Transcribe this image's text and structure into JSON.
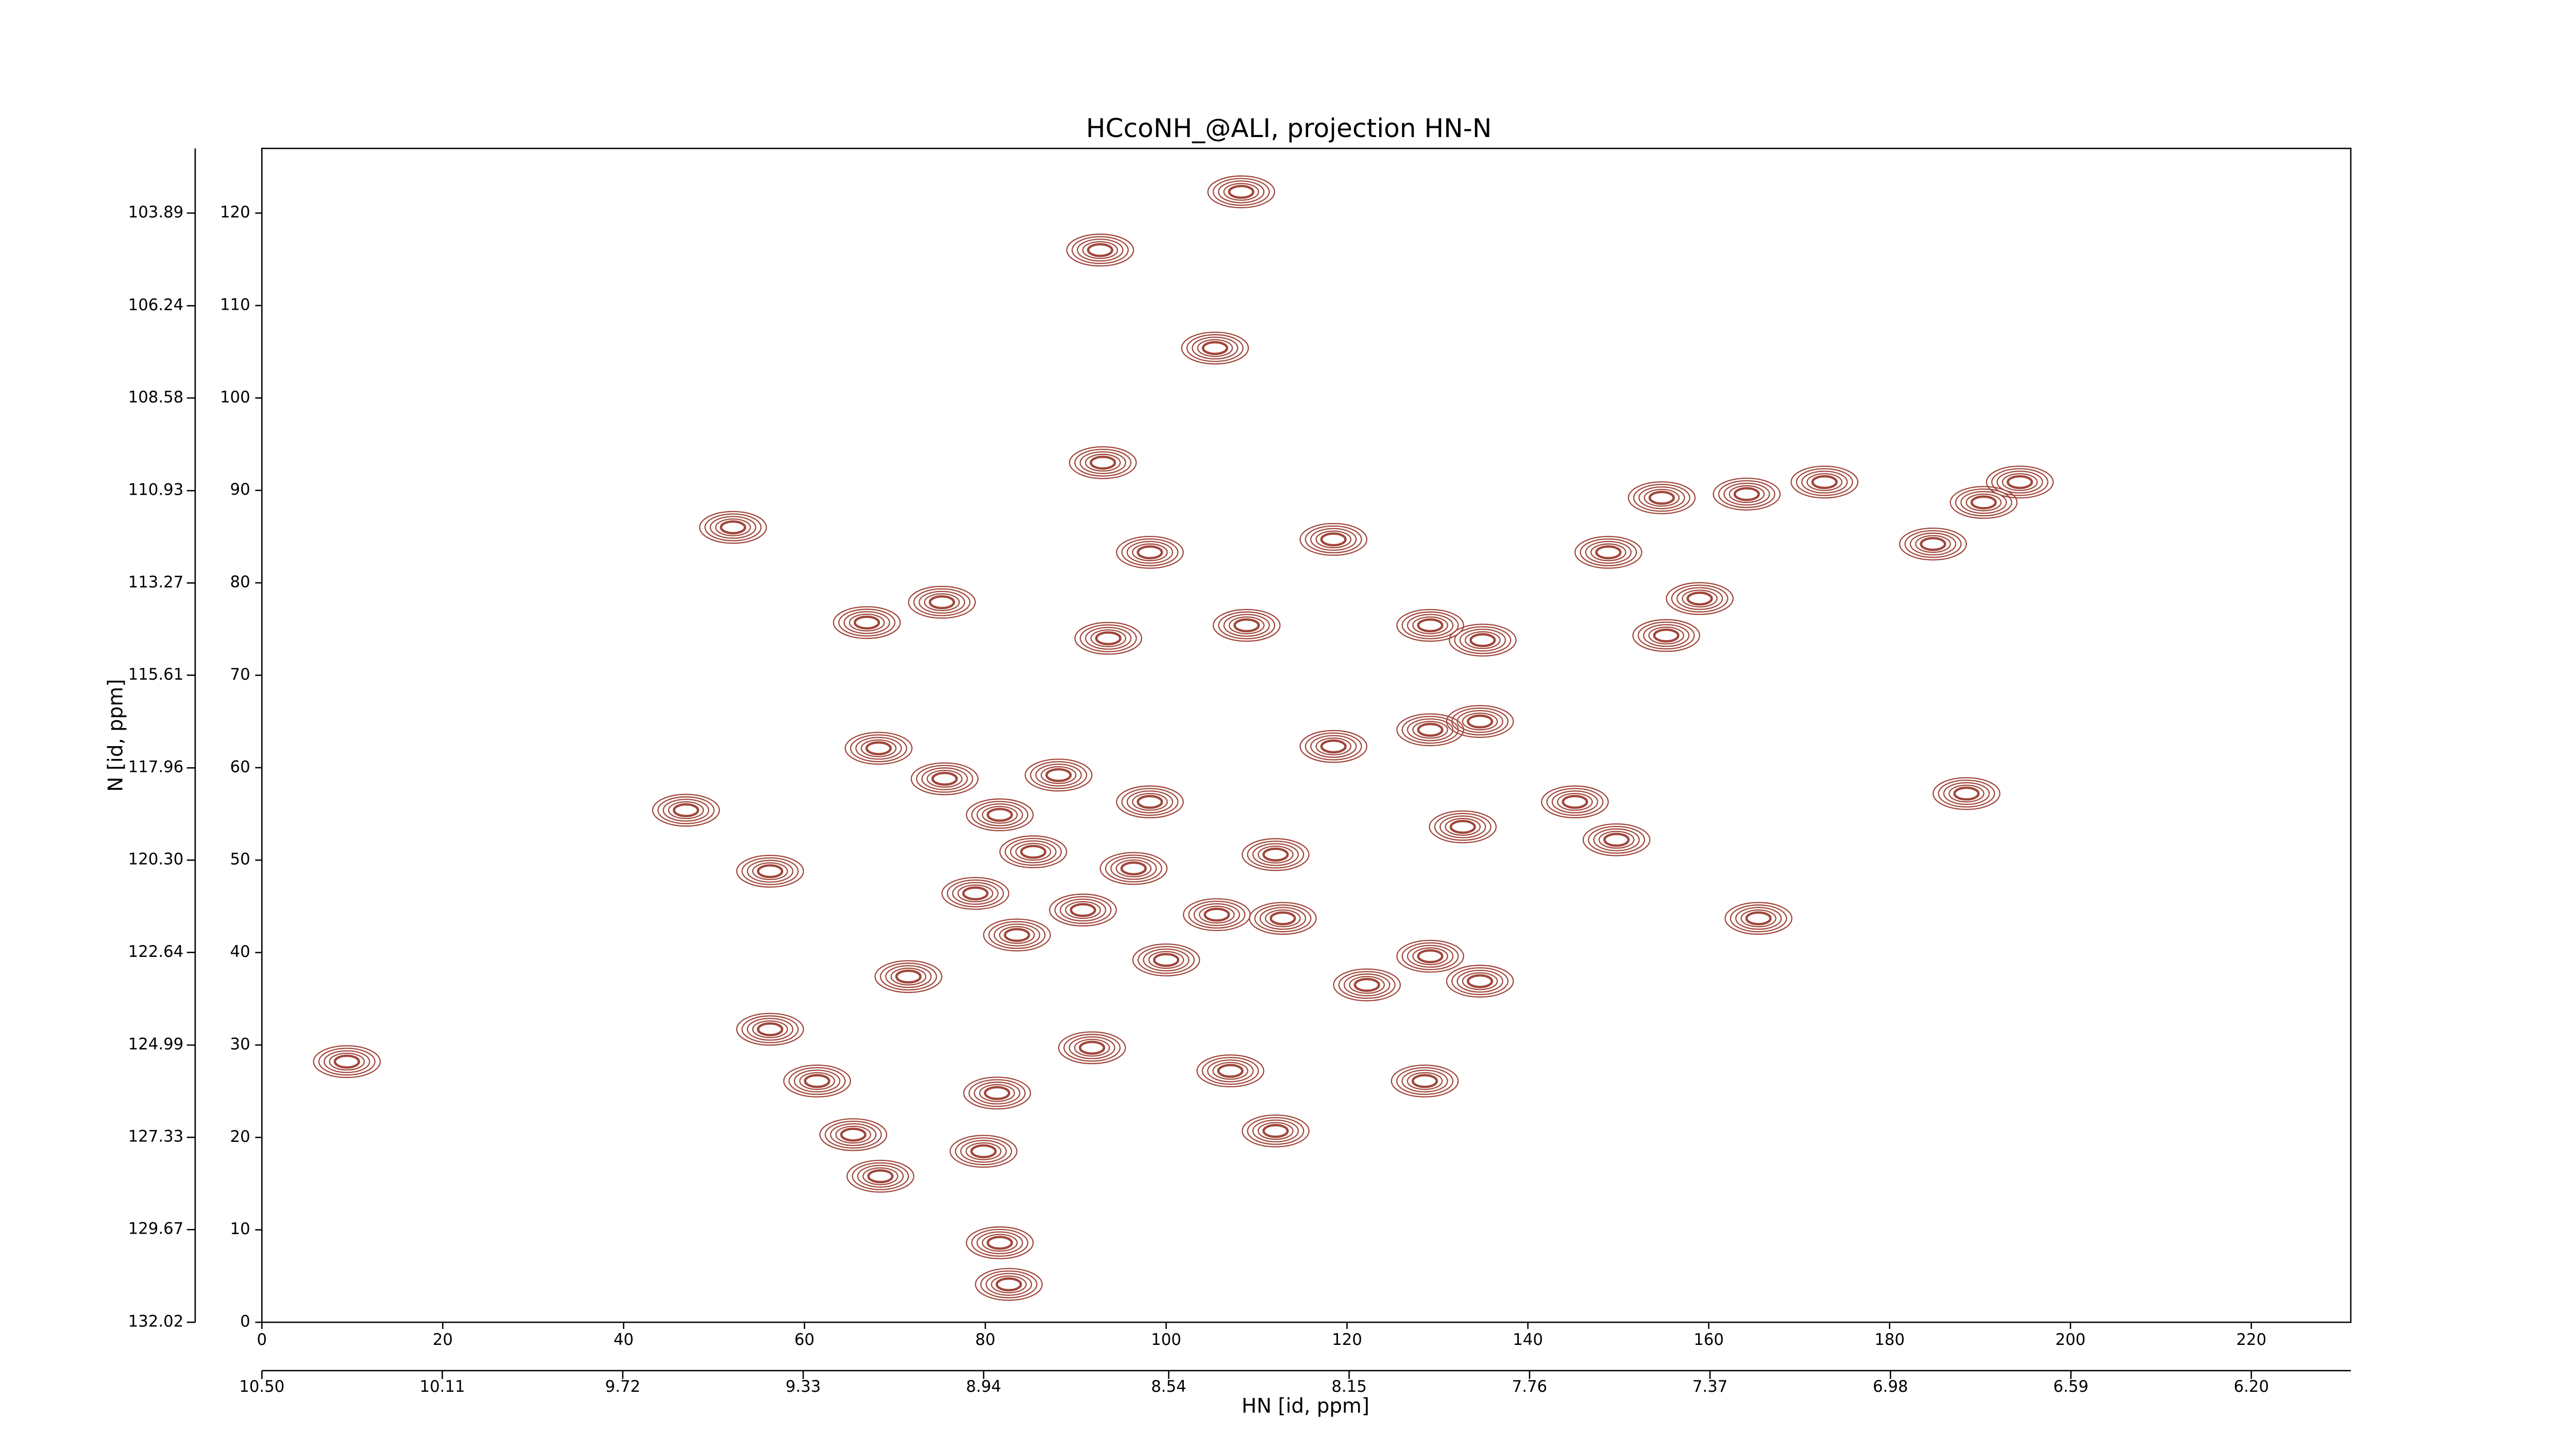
{
  "chart_data": {
    "type": "contour",
    "title": "HCcoNH_@ALI, projection HN-N",
    "x_label": "HN [id, ppm]",
    "y_label": "N [id, ppm]",
    "xlim": [
      0,
      231
    ],
    "ylim": [
      0,
      127
    ],
    "xticks": [
      0,
      20,
      40,
      60,
      80,
      100,
      120,
      140,
      160,
      180,
      200,
      220
    ],
    "yticks": [
      0,
      10,
      20,
      30,
      40,
      50,
      60,
      70,
      80,
      90,
      100,
      110,
      120
    ],
    "x2lim": [
      10.5,
      5.985
    ],
    "x2ticks": [
      {
        "value": 10.5,
        "label": "10.50"
      },
      10.11,
      9.72,
      9.33,
      8.94,
      8.54,
      8.15,
      7.76,
      7.37,
      6.98,
      6.59,
      {
        "value": 6.2,
        "label": "6.20"
      }
    ],
    "y2lim": [
      132.02,
      102.25
    ],
    "y2ticks": [
      103.89,
      106.24,
      108.58,
      110.93,
      113.27,
      115.61,
      117.96,
      {
        "value": 120.3,
        "label": "120.30"
      },
      122.64,
      124.99,
      127.33,
      129.67,
      132.02
    ],
    "color": "#a0453a",
    "peaks": {
      "x": [
        108.3,
        92.7,
        105.4,
        93,
        52.1,
        118.5,
        98.2,
        66.9,
        75.2,
        93.6,
        108.9,
        129.2,
        135,
        155.3,
        159,
        148.9,
        154.8,
        164.2,
        172.8,
        184.8,
        190.4,
        194.4,
        129.2,
        134.7,
        118.5,
        68.2,
        75.5,
        46.9,
        88.1,
        98.2,
        145.2,
        132.8,
        149.8,
        188.5,
        56.2,
        81.6,
        85.3,
        96.4,
        112.1,
        78.9,
        90.8,
        105.6,
        112.9,
        165.5,
        71.5,
        83.5,
        100,
        122.2,
        129.2,
        134.7,
        56.2,
        61.4,
        91.8,
        81.3,
        107.1,
        128.6,
        65.4,
        79.8,
        68.4,
        112.1,
        81.6,
        82.6,
        9.4
      ],
      "y": [
        122.3,
        116,
        105.4,
        93,
        86,
        84.7,
        83.3,
        75.7,
        77.9,
        74,
        75.4,
        75.4,
        73.8,
        74.3,
        78.3,
        83.3,
        89.2,
        89.6,
        90.9,
        84.2,
        88.7,
        90.9,
        64.1,
        65,
        62.3,
        62.1,
        58.8,
        55.4,
        59.2,
        56.3,
        56.3,
        53.6,
        52.2,
        57.2,
        48.8,
        54.9,
        50.9,
        49.1,
        50.6,
        46.4,
        44.6,
        44.1,
        43.7,
        43.7,
        37.4,
        41.9,
        39.2,
        36.5,
        39.6,
        36.9,
        31.7,
        26.1,
        29.7,
        24.8,
        27.2,
        26.1,
        20.3,
        18.5,
        15.8,
        20.7,
        8.6,
        4.1,
        28.2
      ]
    }
  }
}
